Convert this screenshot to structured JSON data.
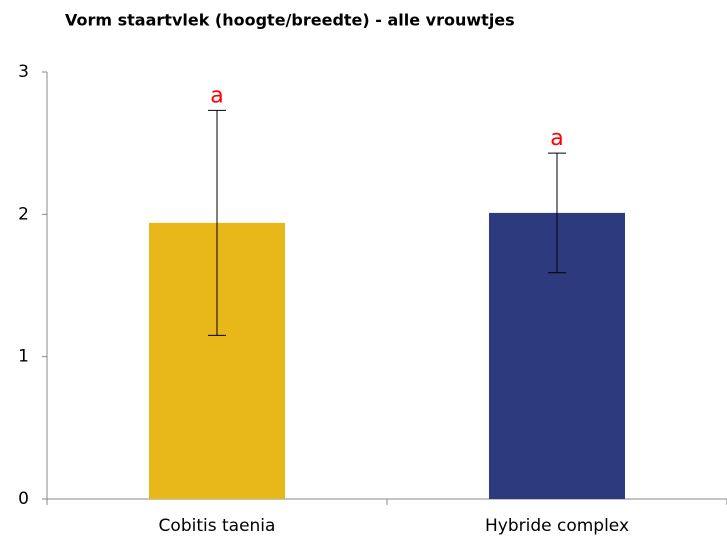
{
  "chart_data": {
    "type": "bar",
    "title": "Vorm staartvlek (hoogte/breedte) - alle vrouwtjes",
    "categories": [
      "Cobitis taenia",
      "Hybride complex"
    ],
    "values": [
      1.94,
      2.01
    ],
    "errors": [
      0.79,
      0.42
    ],
    "colors": [
      "#e8b71a",
      "#2e3a7e"
    ],
    "annotations": [
      "a",
      "a"
    ],
    "annotation_color": "#ff0000",
    "ylim": [
      0,
      3
    ],
    "yticks": [
      0,
      1,
      2,
      3
    ],
    "grid": false
  }
}
